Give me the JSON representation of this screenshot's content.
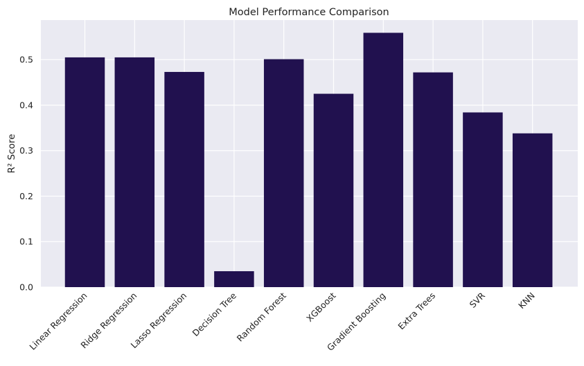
{
  "chart_data": {
    "type": "bar",
    "title": "Model Performance Comparison",
    "xlabel": "",
    "ylabel": "R² Score",
    "categories": [
      "Linear Regression",
      "Ridge Regression",
      "Lasso Regression",
      "Decision Tree",
      "Random Forest",
      "XGBoost",
      "Gradient Boosting",
      "Extra Trees",
      "SVR",
      "KNN"
    ],
    "values": [
      0.505,
      0.505,
      0.473,
      0.035,
      0.501,
      0.425,
      0.559,
      0.472,
      0.384,
      0.338
    ],
    "ylim": [
      0,
      0.587
    ],
    "yticks": [
      0.0,
      0.1,
      0.2,
      0.3,
      0.4,
      0.5
    ],
    "grid": true,
    "bar_color": "#21114f",
    "plot_background": "#eaeaf2",
    "grid_color": "#ffffff"
  }
}
